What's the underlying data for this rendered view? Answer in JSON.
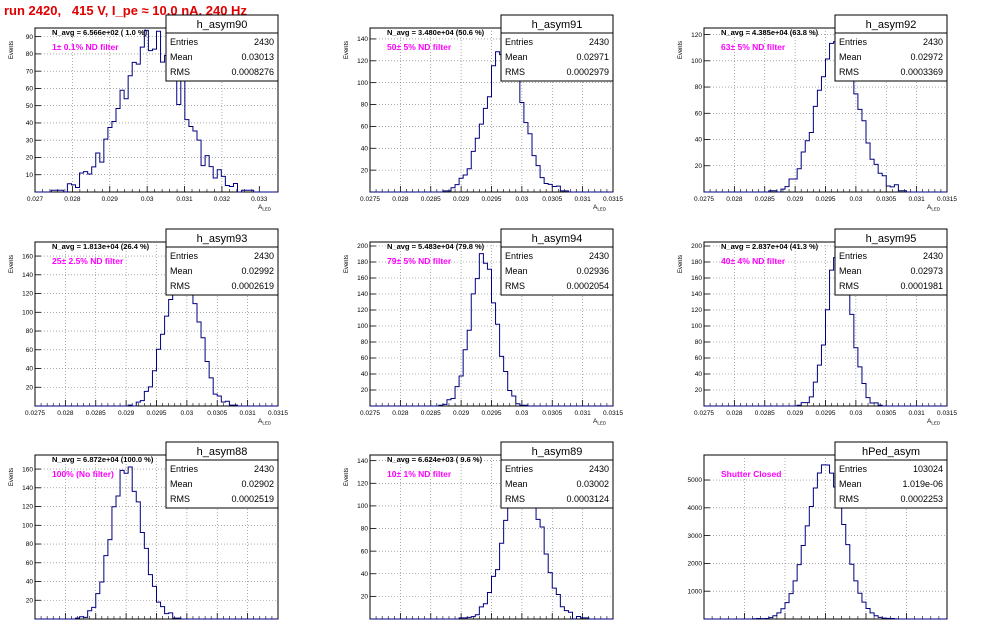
{
  "page": {
    "title": "run 2420,   415 V, I_pe ≈ 10.0 nA, 240 Hz"
  },
  "colors": {
    "title": "#e00000",
    "annotation": "#ff00ff",
    "histogram": "#000080",
    "axes": "#000000",
    "grid": "#777777"
  },
  "stats_labels": {
    "entries": "Entries",
    "mean": "Mean",
    "rms": "RMS"
  },
  "chart_data": [
    {
      "type": "histogram",
      "name": "h_asym90",
      "navg": "N_avg = 6.566e+02 ( 1.0 %)",
      "filter": "1± 0.1% ND filter",
      "entries": "2430",
      "mean": "0.03013",
      "rms": "0.0008276",
      "ylabel": "Events",
      "xlabel": "A_LED",
      "xlim": [
        0.027,
        0.0335
      ],
      "ylim": [
        0,
        95
      ],
      "xticks": [
        0.027,
        0.028,
        0.029,
        0.03,
        0.031,
        0.032,
        0.033
      ],
      "xtick_labels": [
        "0.027",
        "0.028",
        "0.029",
        "0.03",
        "0.031",
        "0.032",
        "0.033"
      ],
      "yticks": [
        10,
        20,
        30,
        40,
        50,
        60,
        70,
        80,
        90
      ],
      "mu": 0.03013,
      "sigma": 0.00083,
      "peak": 85,
      "noise": [
        0,
        4,
        -6,
        8,
        2,
        -3,
        10,
        -8,
        5,
        12,
        -10,
        6,
        3,
        -5,
        14,
        -12,
        8,
        4,
        -6,
        10,
        3,
        -4,
        7,
        -2,
        5,
        1,
        -3,
        6,
        -1,
        2,
        0,
        1,
        3,
        -2
      ]
    },
    {
      "type": "histogram",
      "name": "h_asym91",
      "navg": "N_avg = 3.480e+04 (50.6 %)",
      "filter": "50± 5% ND filter",
      "entries": "2430",
      "mean": "0.02971",
      "rms": "0.0002979",
      "ylabel": "Events",
      "xlabel": "A_LED",
      "xlim": [
        0.0275,
        0.0315
      ],
      "ylim": [
        0,
        150
      ],
      "xticks": [
        0.0275,
        0.028,
        0.0285,
        0.029,
        0.0295,
        0.03,
        0.0305,
        0.031,
        0.0315
      ],
      "xtick_labels": [
        "0.0275",
        "0.028",
        "0.0285",
        "0.029",
        "0.0295",
        "0.03",
        "0.0305",
        "0.031",
        "0.0315"
      ],
      "yticks": [
        20,
        40,
        60,
        80,
        100,
        120,
        140
      ],
      "mu": 0.02971,
      "sigma": 0.0003,
      "peak": 135,
      "noise": [
        0,
        2,
        -4,
        6,
        -3,
        8,
        -6,
        10,
        -8,
        5,
        12,
        -10,
        8,
        -5,
        6,
        3,
        -4,
        5,
        2,
        -3,
        4,
        1,
        -2,
        0
      ]
    },
    {
      "type": "histogram",
      "name": "h_asym92",
      "navg": "N_avg = 4.385e+04 (63.8 %)",
      "filter": "63± 5% ND filter",
      "entries": "2430",
      "mean": "0.02972",
      "rms": "0.0003369",
      "ylabel": "Events",
      "xlabel": "A_LED",
      "xlim": [
        0.0275,
        0.0315
      ],
      "ylim": [
        0,
        125
      ],
      "xticks": [
        0.0275,
        0.028,
        0.0285,
        0.029,
        0.0295,
        0.03,
        0.0305,
        0.031,
        0.0315
      ],
      "xtick_labels": [
        "0.0275",
        "0.028",
        "0.0285",
        "0.029",
        "0.0295",
        "0.03",
        "0.0305",
        "0.031",
        "0.0315"
      ],
      "yticks": [
        20,
        40,
        60,
        80,
        100,
        120
      ],
      "mu": 0.02972,
      "sigma": 0.00034,
      "peak": 112,
      "noise": [
        0,
        3,
        -2,
        5,
        -6,
        8,
        -5,
        10,
        -9,
        6,
        8,
        -10,
        6,
        -4,
        7,
        2,
        -5,
        4,
        -2,
        3,
        1,
        -1,
        0
      ]
    },
    {
      "type": "histogram",
      "name": "h_asym93",
      "navg": "N_avg = 1.813e+04 (26.4 %)",
      "filter": "25± 2.5% ND filter",
      "entries": "2430",
      "mean": "0.02992",
      "rms": "0.0002619",
      "ylabel": "Events",
      "xlabel": "A_LED",
      "xlim": [
        0.0275,
        0.0315
      ],
      "ylim": [
        0,
        175
      ],
      "xticks": [
        0.0275,
        0.028,
        0.0285,
        0.029,
        0.0295,
        0.03,
        0.0305,
        0.031,
        0.0315
      ],
      "xtick_labels": [
        "0.0275",
        "0.028",
        "0.0285",
        "0.029",
        "0.0295",
        "0.03",
        "0.0305",
        "0.031",
        "0.0315"
      ],
      "yticks": [
        20,
        40,
        60,
        80,
        100,
        120,
        140,
        160
      ],
      "mu": 0.02992,
      "sigma": 0.00026,
      "peak": 160,
      "noise": [
        0,
        2,
        -3,
        5,
        -4,
        8,
        -6,
        10,
        -12,
        8,
        12,
        -10,
        6,
        -5,
        4,
        2,
        -3,
        2,
        1,
        0
      ]
    },
    {
      "type": "histogram",
      "name": "h_asym94",
      "navg": "N_avg = 5.483e+04 (79.8 %)",
      "filter": "79± 5% ND filter",
      "entries": "2430",
      "mean": "0.02936",
      "rms": "0.0002054",
      "ylabel": "Events",
      "xlabel": "A_LED",
      "xlim": [
        0.0275,
        0.0315
      ],
      "ylim": [
        0,
        205
      ],
      "xticks": [
        0.0275,
        0.028,
        0.0285,
        0.029,
        0.0295,
        0.03,
        0.0305,
        0.031,
        0.0315
      ],
      "xtick_labels": [
        "0.0275",
        "0.028",
        "0.0285",
        "0.029",
        "0.0295",
        "0.03",
        "0.0305",
        "0.031",
        "0.0315"
      ],
      "yticks": [
        20,
        40,
        60,
        80,
        100,
        120,
        140,
        160,
        180,
        200
      ],
      "mu": 0.02936,
      "sigma": 0.000205,
      "peak": 190,
      "noise": [
        0,
        3,
        -4,
        6,
        -8,
        10,
        -12,
        14,
        -10,
        8,
        -6,
        5,
        -3,
        2,
        1,
        0
      ]
    },
    {
      "type": "histogram",
      "name": "h_asym95",
      "navg": "N_avg = 2.837e+04 (41.3 %)",
      "filter": "40± 4% ND filter",
      "entries": "2430",
      "mean": "0.02973",
      "rms": "0.0001981",
      "ylabel": "Events",
      "xlabel": "A_LED",
      "xlim": [
        0.0275,
        0.0315
      ],
      "ylim": [
        0,
        205
      ],
      "xticks": [
        0.0275,
        0.028,
        0.0285,
        0.029,
        0.0295,
        0.03,
        0.0305,
        0.031,
        0.0315
      ],
      "xtick_labels": [
        "0.0275",
        "0.028",
        "0.0285",
        "0.029",
        "0.0295",
        "0.03",
        "0.0305",
        "0.031",
        "0.0315"
      ],
      "yticks": [
        20,
        40,
        60,
        80,
        100,
        120,
        140,
        160,
        180,
        200
      ],
      "mu": 0.02973,
      "sigma": 0.0002,
      "peak": 195,
      "noise": [
        0,
        2,
        -5,
        6,
        -8,
        10,
        -12,
        12,
        -8,
        6,
        -5,
        3,
        -2,
        1,
        0
      ]
    },
    {
      "type": "histogram",
      "name": "h_asym88",
      "navg": "N_avg = 6.872e+04 (100.0 %)",
      "filter": "100% (No filter)",
      "entries": "2430",
      "mean": "0.02902",
      "rms": "0.0002519",
      "ylabel": "Events",
      "xlabel": "A_LED",
      "xlim": [
        0.0275,
        0.0315
      ],
      "ylim": [
        0,
        175
      ],
      "xticks": [
        0.0275,
        0.028,
        0.0285,
        0.029,
        0.0295,
        0.03,
        0.0305,
        0.031,
        0.0315
      ],
      "xtick_labels": [
        "0.0275",
        "0.028",
        "0.0285",
        "0.029",
        "0.0295",
        "0.03",
        "0.0305",
        "0.031",
        "0.0315"
      ],
      "yticks": [
        20,
        40,
        60,
        80,
        100,
        120,
        140,
        160
      ],
      "mu": 0.02902,
      "sigma": 0.00025,
      "peak": 162,
      "noise": [
        0,
        3,
        -4,
        6,
        -6,
        10,
        -8,
        12,
        -10,
        6,
        -6,
        4,
        -3,
        2,
        1,
        0
      ]
    },
    {
      "type": "histogram",
      "name": "h_asym89",
      "navg": "N_avg = 6.624e+03 ( 9.6 %)",
      "filter": "10± 1% ND filter",
      "entries": "2430",
      "mean": "0.03002",
      "rms": "0.0003124",
      "ylabel": "Events",
      "xlabel": "A_LED",
      "xlim": [
        0.0275,
        0.0315
      ],
      "ylim": [
        0,
        145
      ],
      "xticks": [
        0.0275,
        0.028,
        0.0285,
        0.029,
        0.0295,
        0.03,
        0.0305,
        0.031,
        0.0315
      ],
      "xtick_labels": [
        "0.0275",
        "0.028",
        "0.0285",
        "0.029",
        "0.0295",
        "0.03",
        "0.0305",
        "0.031",
        "0.0315"
      ],
      "yticks": [
        20,
        40,
        60,
        80,
        100,
        120,
        140
      ],
      "mu": 0.03002,
      "sigma": 0.00031,
      "peak": 125,
      "noise": [
        0,
        2,
        -3,
        6,
        -5,
        8,
        -8,
        10,
        -9,
        7,
        9,
        -8,
        6,
        -4,
        4,
        2,
        -2,
        1,
        0
      ]
    },
    {
      "type": "histogram",
      "name": "hPed_asym",
      "navg": "",
      "filter": "Shutter Closed",
      "entries": "103024",
      "mean": "1.019e-06",
      "rms": "0.0002253",
      "ylabel": "",
      "xlabel": "",
      "xlim": [
        -0.0015,
        0.0015
      ],
      "ylim": [
        0,
        5900
      ],
      "xticks": [
        -0.0015,
        -0.001,
        -0.0005,
        0,
        0.0005,
        0.001,
        0.0015
      ],
      "xtick_labels": [
        "-0.0015",
        "-0.001",
        "-0.0005",
        "0",
        "0.0005",
        "0.001",
        "0.0015"
      ],
      "yticks": [
        1000,
        2000,
        3000,
        4000,
        5000
      ],
      "mu": 1e-06,
      "sigma": 0.000225,
      "peak": 5550,
      "noise": [
        0,
        20,
        -30,
        40,
        -20,
        30,
        -40,
        20,
        -10,
        10,
        0
      ]
    }
  ]
}
